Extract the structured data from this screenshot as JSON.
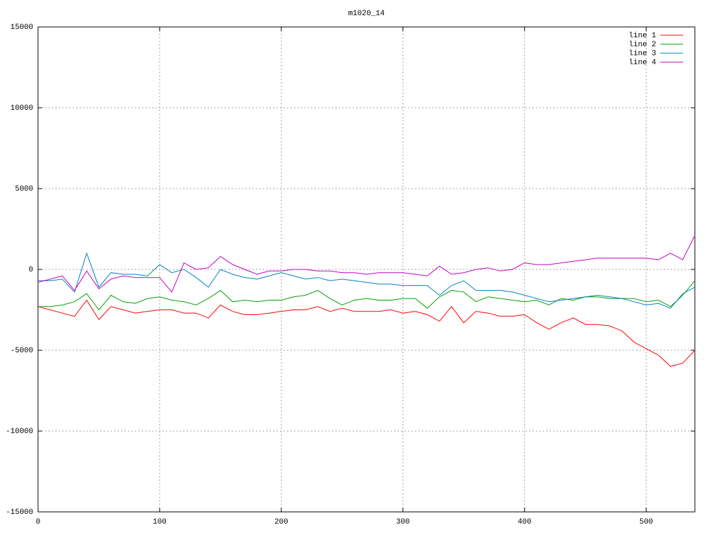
{
  "chart_data": {
    "type": "line",
    "title": "m1020_14",
    "x": [
      0,
      10,
      20,
      30,
      40,
      50,
      60,
      70,
      80,
      90,
      100,
      110,
      120,
      130,
      140,
      150,
      160,
      170,
      180,
      190,
      200,
      210,
      220,
      230,
      240,
      250,
      260,
      270,
      280,
      290,
      300,
      310,
      320,
      330,
      340,
      350,
      360,
      370,
      380,
      390,
      400,
      410,
      420,
      430,
      440,
      450,
      460,
      470,
      480,
      490,
      500,
      510,
      520,
      530,
      540
    ],
    "series": [
      {
        "name": "line 1",
        "color": "#ff0000",
        "values": [
          -2300,
          -2500,
          -2700,
          -2900,
          -1900,
          -3100,
          -2300,
          -2500,
          -2700,
          -2600,
          -2500,
          -2500,
          -2700,
          -2700,
          -3000,
          -2200,
          -2600,
          -2800,
          -2800,
          -2700,
          -2600,
          -2500,
          -2500,
          -2300,
          -2600,
          -2400,
          -2600,
          -2600,
          -2600,
          -2500,
          -2700,
          -2600,
          -2800,
          -3200,
          -2300,
          -3300,
          -2600,
          -2700,
          -2900,
          -2900,
          -2800,
          -3300,
          -3700,
          -3300,
          -3000,
          -3400,
          -3400,
          -3500,
          -3800,
          -4500,
          -4900,
          -5300,
          -6000,
          -5800,
          -5000
        ]
      },
      {
        "name": "line 2",
        "color": "#00a000",
        "values": [
          -2300,
          -2300,
          -2200,
          -2000,
          -1500,
          -2500,
          -1600,
          -2000,
          -2100,
          -1800,
          -1700,
          -1900,
          -2000,
          -2200,
          -1800,
          -1300,
          -2000,
          -1900,
          -2000,
          -1900,
          -1900,
          -1700,
          -1600,
          -1300,
          -1800,
          -2200,
          -1900,
          -1800,
          -1900,
          -1900,
          -1800,
          -1800,
          -2400,
          -1700,
          -1300,
          -1400,
          -2000,
          -1700,
          -1800,
          -1900,
          -2000,
          -1900,
          -2200,
          -1800,
          -1900,
          -1700,
          -1700,
          -1800,
          -1800,
          -1800,
          -2000,
          -1900,
          -2300,
          -1600,
          -700
        ]
      },
      {
        "name": "line 3",
        "color": "#0080c0",
        "values": [
          -700,
          -700,
          -600,
          -1400,
          1000,
          -1100,
          -200,
          -300,
          -300,
          -400,
          300,
          -200,
          0,
          -500,
          -1100,
          0,
          -300,
          -500,
          -600,
          -400,
          -200,
          -400,
          -600,
          -500,
          -700,
          -600,
          -700,
          -800,
          -900,
          -900,
          -1000,
          -1000,
          -1000,
          -1600,
          -1000,
          -700,
          -1300,
          -1300,
          -1300,
          -1400,
          -1600,
          -1800,
          -2000,
          -1900,
          -1800,
          -1700,
          -1600,
          -1700,
          -1800,
          -2000,
          -2200,
          -2100,
          -2400,
          -1500,
          -1100
        ]
      },
      {
        "name": "line 4",
        "color": "#c000c0",
        "values": [
          -800,
          -600,
          -400,
          -1300,
          -100,
          -1200,
          -600,
          -400,
          -500,
          -500,
          -500,
          -1400,
          400,
          0,
          100,
          800,
          300,
          0,
          -300,
          -100,
          -100,
          0,
          0,
          -100,
          -100,
          -200,
          -200,
          -300,
          -200,
          -200,
          -200,
          -300,
          -400,
          200,
          -300,
          -200,
          0,
          100,
          -100,
          0,
          400,
          300,
          300,
          400,
          500,
          600,
          700,
          700,
          700,
          700,
          700,
          600,
          1000,
          600,
          2100
        ]
      }
    ],
    "xlim": [
      0,
      540
    ],
    "xticks": [
      0,
      100,
      200,
      300,
      400,
      500
    ],
    "ylim": [
      -15000,
      15000
    ],
    "yticks": [
      -15000,
      -10000,
      -5000,
      0,
      5000,
      10000,
      15000
    ],
    "grid": true,
    "legend": "top-right"
  }
}
